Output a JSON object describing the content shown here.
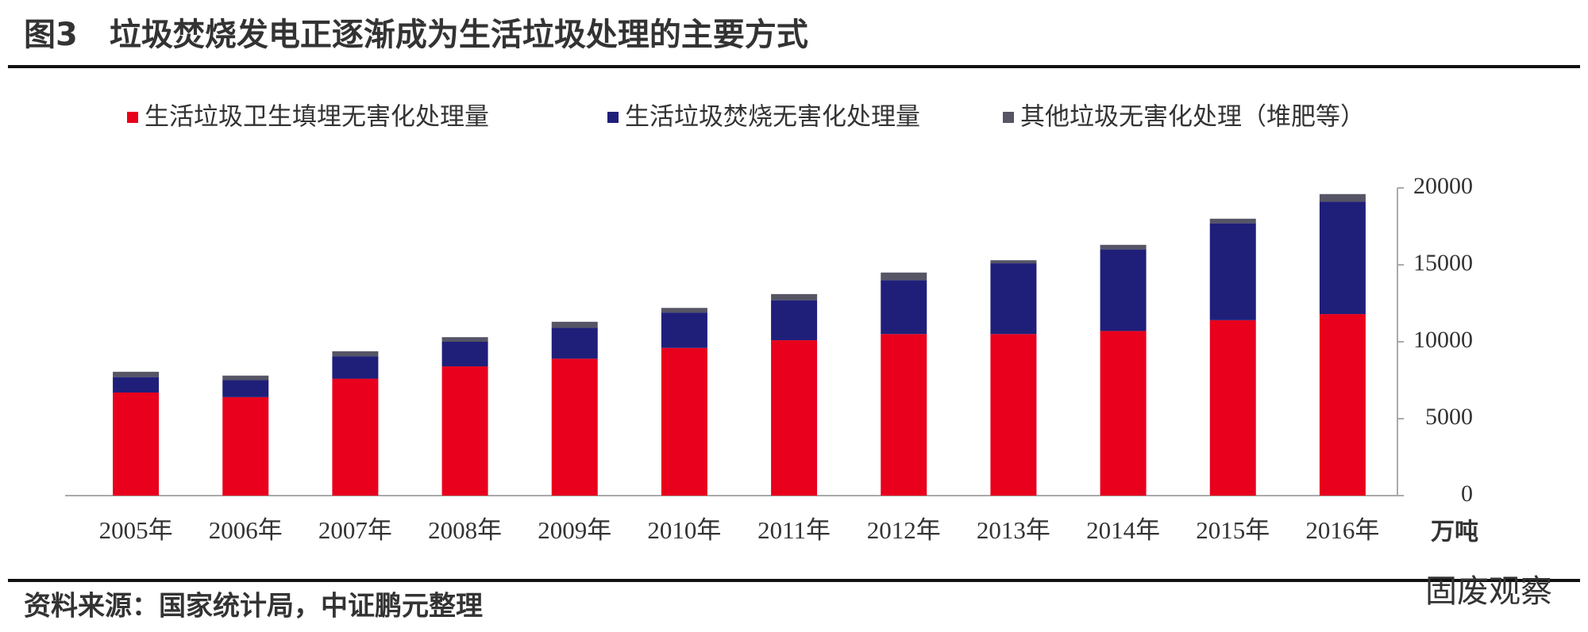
{
  "chart_data": {
    "type": "stacked_bar",
    "title": "图3　垃圾焚烧发电正逐渐成为生活垃圾处理的主要方式",
    "categories": [
      "2005年",
      "2006年",
      "2007年",
      "2008年",
      "2009年",
      "2010年",
      "2011年",
      "2012年",
      "2013年",
      "2014年",
      "2015年",
      "2016年"
    ],
    "series": [
      {
        "name": "生活垃圾卫生填埋无害化处理量",
        "color": "#e8001c",
        "values": [
          6700,
          6400,
          7600,
          8400,
          8900,
          9600,
          10100,
          10500,
          10500,
          10700,
          11400,
          11800
        ]
      },
      {
        "name": "生活垃圾焚烧无害化处理量",
        "color": "#1f1f7a",
        "values": [
          1000,
          1100,
          1450,
          1600,
          2000,
          2300,
          2600,
          3500,
          4600,
          5300,
          6300,
          7300
        ]
      },
      {
        "name": "其他垃圾无害化处理（堆肥等）",
        "color": "#555566",
        "values": [
          350,
          300,
          330,
          300,
          400,
          300,
          400,
          500,
          200,
          300,
          300,
          500
        ]
      }
    ],
    "y_label": "万吨",
    "ylim": [
      0,
      20000
    ],
    "yticks": [
      0,
      5000,
      10000,
      15000,
      20000
    ],
    "source": "资料来源：国家统计局，中证鹏元整理",
    "watermark": "固废观察"
  }
}
